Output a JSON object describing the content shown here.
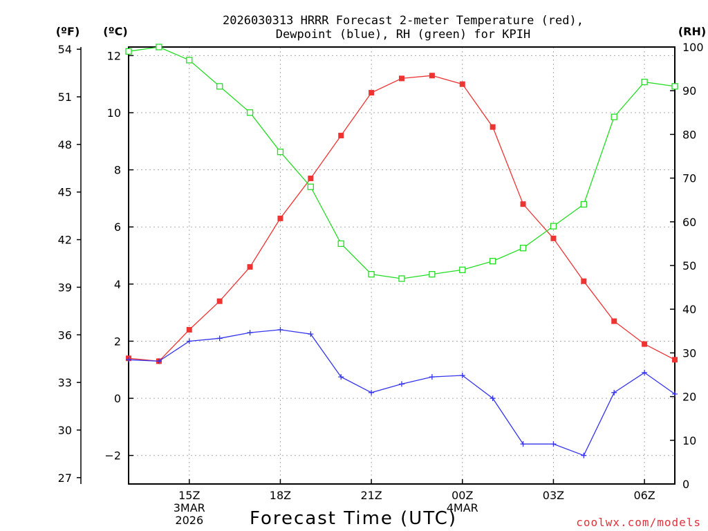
{
  "chart_data": {
    "type": "line",
    "title_line1": "2026030313 HRRR Forecast 2-meter Temperature (red),",
    "title_line2": "Dewpoint (blue), RH (green) for KPIH",
    "xlabel": "Forecast Time (UTC)",
    "left_outer_unit": "(ºF)",
    "left_inner_unit": "(ºC)",
    "right_unit": "(RH)",
    "credit": "coolwx.com/models",
    "x_hours": [
      0,
      1,
      2,
      3,
      4,
      5,
      6,
      7,
      8,
      9,
      10,
      11,
      12,
      13,
      14,
      15,
      16,
      17,
      18
    ],
    "xlim": [
      0,
      18
    ],
    "x_ticks": [
      {
        "hour": 2,
        "labels": [
          "15Z",
          "3MAR",
          "2026"
        ]
      },
      {
        "hour": 5,
        "labels": [
          "18Z"
        ]
      },
      {
        "hour": 8,
        "labels": [
          "21Z"
        ]
      },
      {
        "hour": 11,
        "labels": [
          "00Z",
          "4MAR"
        ]
      },
      {
        "hour": 14,
        "labels": [
          "03Z"
        ]
      },
      {
        "hour": 17,
        "labels": [
          "06Z"
        ]
      }
    ],
    "celsius_axis": {
      "ylim": [
        -3,
        12.3
      ],
      "ticks": [
        "-2",
        "0",
        "2",
        "4",
        "6",
        "8",
        "10",
        "12"
      ],
      "tick_values": [
        -2,
        0,
        2,
        4,
        6,
        8,
        10,
        12
      ]
    },
    "fahrenheit_axis": {
      "ticks": [
        "27",
        "30",
        "33",
        "36",
        "39",
        "42",
        "45",
        "48",
        "51",
        "54"
      ],
      "tick_values": [
        27,
        30,
        33,
        36,
        39,
        42,
        45,
        48,
        51,
        54
      ]
    },
    "rh_axis": {
      "ylim": [
        0,
        100
      ],
      "ticks": [
        "0",
        "10",
        "20",
        "30",
        "40",
        "50",
        "60",
        "70",
        "80",
        "90",
        "100"
      ],
      "tick_values": [
        0,
        10,
        20,
        30,
        40,
        50,
        60,
        70,
        80,
        90,
        100
      ]
    },
    "series": [
      {
        "name": "Temperature",
        "units": "C",
        "color": "#ee3333",
        "marker": "filled-square",
        "values": [
          1.4,
          1.3,
          2.4,
          3.4,
          4.6,
          6.3,
          7.7,
          9.2,
          10.7,
          11.2,
          11.3,
          11.0,
          9.5,
          6.8,
          5.6,
          4.1,
          2.7,
          1.9,
          1.35
        ]
      },
      {
        "name": "Dewpoint",
        "units": "C",
        "color": "#3333ee",
        "marker": "plus",
        "values": [
          1.35,
          1.3,
          2.0,
          2.1,
          2.3,
          2.4,
          2.25,
          0.75,
          0.2,
          0.5,
          0.75,
          0.8,
          0.0,
          -1.6,
          -1.6,
          -2.0,
          0.2,
          0.9,
          0.15
        ]
      },
      {
        "name": "RH",
        "units": "%",
        "color": "#22dd22",
        "marker": "open-square",
        "values": [
          99,
          100,
          97,
          91,
          85,
          76,
          68,
          55,
          48,
          47,
          48,
          49,
          51,
          54,
          59,
          64,
          84,
          92,
          91
        ]
      }
    ],
    "grid": true
  }
}
